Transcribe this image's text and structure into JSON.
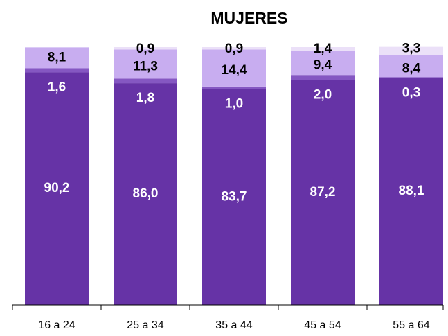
{
  "chart_data": {
    "type": "bar",
    "stacked": true,
    "title": "MUJERES",
    "categories": [
      "16 a 24",
      "25 a 34",
      "35 a 44",
      "45 a 54",
      "55 a 64"
    ],
    "series": [
      {
        "color": "#6633a6",
        "values": [
          90.2,
          86.0,
          83.7,
          87.2,
          88.1
        ],
        "value_labels": [
          "90,2",
          "86,0",
          "83,7",
          "87,2",
          "88,1"
        ]
      },
      {
        "color": "#8557c2",
        "values": [
          1.6,
          1.8,
          1.0,
          2.0,
          0.3
        ],
        "value_labels": [
          "1,6",
          "1,8",
          "1,0",
          "2,0",
          "0,3"
        ]
      },
      {
        "color": "#c8adf0",
        "values": [
          8.1,
          11.3,
          14.4,
          9.4,
          8.4
        ],
        "value_labels": [
          "8,1",
          "11,3",
          "14,4",
          "9,4",
          "8,4"
        ]
      },
      {
        "color": "#ebe0f8",
        "values": [
          null,
          0.9,
          0.9,
          1.4,
          3.3
        ],
        "value_labels": [
          null,
          "0,9",
          "0,9",
          "1,4",
          "3,3"
        ]
      }
    ],
    "ylim": [
      0,
      100
    ]
  }
}
